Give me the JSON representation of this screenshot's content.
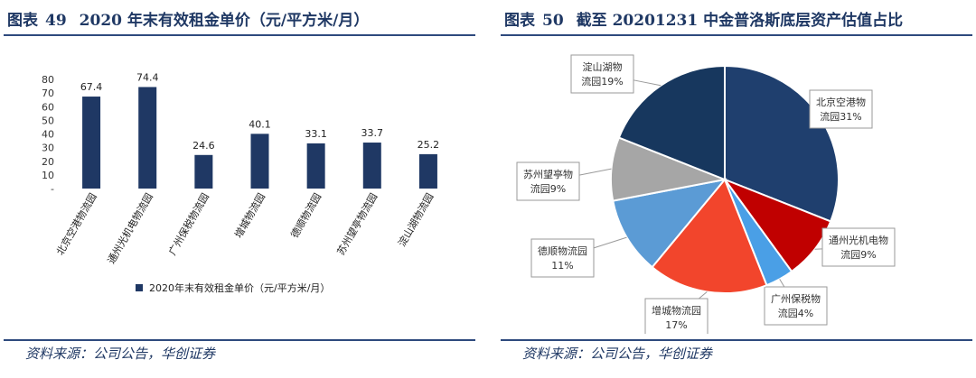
{
  "left_panel": {
    "figure_label": "图表",
    "figure_number": "49",
    "title": "2020 年末有效租金单价（元/平方米/月）",
    "source": "资料来源：公司公告，华创证券"
  },
  "right_panel": {
    "figure_label": "图表",
    "figure_number": "50",
    "title": "截至 20201231 中金普洛斯底层资产估值占比",
    "source": "资料来源：公司公告，华创证券"
  },
  "colors": {
    "title": "#1f3864",
    "rule": "#2e4a7d",
    "bar": "#1f3864"
  },
  "chart_data": [
    {
      "type": "bar",
      "title": "",
      "categories": [
        "北京空港物流园",
        "通州光机电物流园",
        "广州保税物流园",
        "增城物流园",
        "德顺物流园",
        "苏州望亭物流园",
        "淀山湖物流园"
      ],
      "series": [
        {
          "name": "2020年末有效租金单价（元/平方米/月）",
          "values": [
            67.4,
            74.4,
            24.6,
            40.1,
            33.1,
            33.7,
            25.2
          ],
          "color": "#1f3864"
        }
      ],
      "yticks": [
        "-",
        "10",
        "20",
        "30",
        "40",
        "50",
        "60",
        "70",
        "80"
      ],
      "ylim": [
        0,
        80
      ],
      "grid": false,
      "legend": "bottom"
    },
    {
      "type": "pie",
      "title": "",
      "slices": [
        {
          "label": "北京空港物流园31%",
          "value": 31,
          "color": "#1f3f6e"
        },
        {
          "label": "通州光机电物流园9%",
          "value": 9,
          "color": "#c00000"
        },
        {
          "label": "广州保税物流园4%",
          "value": 4,
          "color": "#4a9fe6"
        },
        {
          "label": "增城物流园17%",
          "value": 17,
          "color": "#f2452c"
        },
        {
          "label": "德顺物流园11%",
          "value": 11,
          "color": "#5b9bd5"
        },
        {
          "label": "苏州望亭物流园9%",
          "value": 9,
          "color": "#a6a6a6"
        },
        {
          "label": "淀山湖物流园19%",
          "value": 19,
          "color": "#17375e"
        }
      ]
    }
  ]
}
